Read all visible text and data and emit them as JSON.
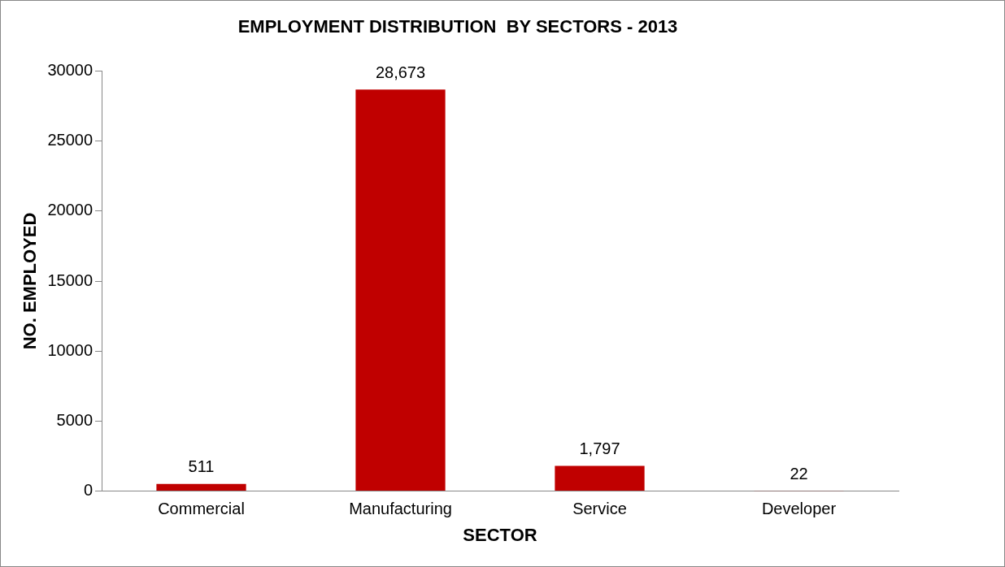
{
  "chart_data": {
    "type": "bar",
    "title": "EMPLOYMENT DISTRIBUTION  BY SECTORS - 2013",
    "xlabel": "SECTOR",
    "ylabel": "NO. EMPLOYED",
    "categories": [
      "Commercial",
      "Manufacturing",
      "Service",
      "Developer"
    ],
    "values": [
      511,
      28673,
      1797,
      22
    ],
    "value_labels": [
      "511",
      "28,673",
      "1,797",
      "22"
    ],
    "color": "#c00000",
    "ylim": [
      0,
      30000
    ],
    "yticks": [
      0,
      5000,
      10000,
      15000,
      20000,
      25000,
      30000
    ],
    "grid": false,
    "legend": false
  }
}
